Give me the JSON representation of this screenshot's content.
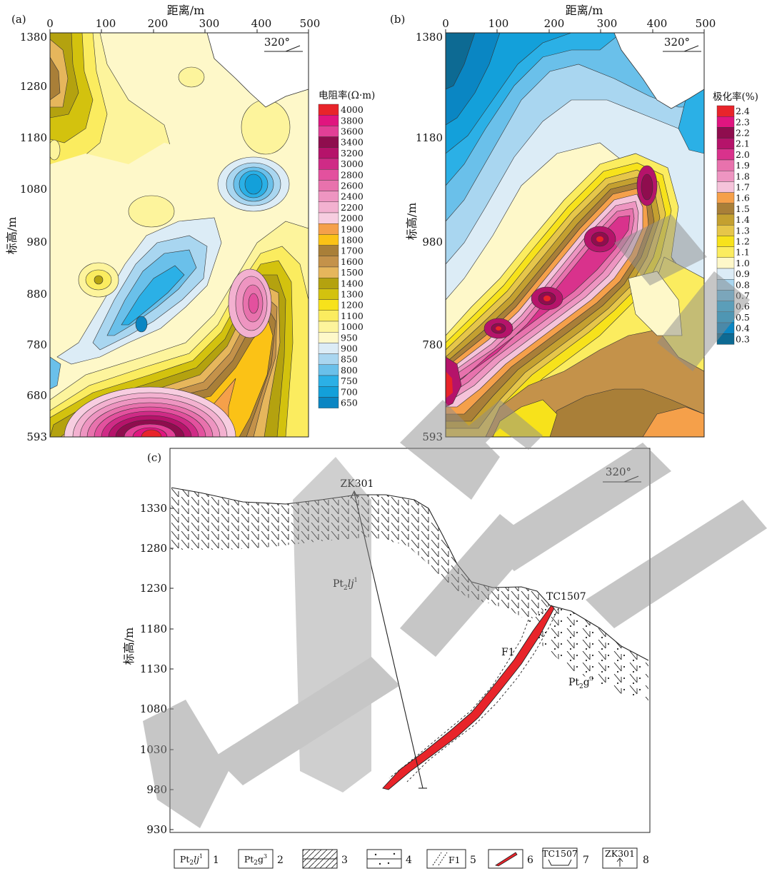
{
  "panels": {
    "a": {
      "label": "(a)",
      "top_axis_title": "距离/m",
      "x_ticks": [
        "0",
        "100",
        "200",
        "300",
        "400",
        "500"
      ],
      "y_axis_title": "标高/m",
      "y_ticks": [
        "1380",
        "1280",
        "1180",
        "1080",
        "980",
        "880",
        "780",
        "680",
        "593"
      ],
      "orientation": "320°",
      "legend_title": "电阻率(Ω·m)",
      "legend": [
        {
          "value": "4000",
          "color": "#e8242a"
        },
        {
          "value": "3800",
          "color": "#e0157f"
        },
        {
          "value": "3600",
          "color": "#e23f96"
        },
        {
          "value": "3400",
          "color": "#8f0d4e"
        },
        {
          "value": "3200",
          "color": "#b5136a"
        },
        {
          "value": "3000",
          "color": "#cf2b86"
        },
        {
          "value": "2800",
          "color": "#e3519e"
        },
        {
          "value": "2600",
          "color": "#e872ad"
        },
        {
          "value": "2400",
          "color": "#ee95c1"
        },
        {
          "value": "2200",
          "color": "#f3b1d0"
        },
        {
          "value": "2000",
          "color": "#f7cde0"
        },
        {
          "value": "1900",
          "color": "#f5a04a"
        },
        {
          "value": "1800",
          "color": "#fbc216"
        },
        {
          "value": "1700",
          "color": "#a97f38"
        },
        {
          "value": "1600",
          "color": "#c4924a"
        },
        {
          "value": "1500",
          "color": "#e6b65c"
        },
        {
          "value": "1400",
          "color": "#b4a20f"
        },
        {
          "value": "1300",
          "color": "#d3c20e"
        },
        {
          "value": "1200",
          "color": "#f7e21b"
        },
        {
          "value": "1100",
          "color": "#fbec5f"
        },
        {
          "value": "1000",
          "color": "#fdf49c"
        },
        {
          "value": "950",
          "color": "#fef8c9"
        },
        {
          "value": "900",
          "color": "#dcecf6"
        },
        {
          "value": "850",
          "color": "#a9d6f0"
        },
        {
          "value": "800",
          "color": "#6ac0ea"
        },
        {
          "value": "750",
          "color": "#2bb0e6"
        },
        {
          "value": "700",
          "color": "#13a0da"
        },
        {
          "value": "650",
          "color": "#0a86c3"
        }
      ]
    },
    "b": {
      "label": "(b)",
      "top_axis_title": "距离/m",
      "x_ticks": [
        "0",
        "100",
        "200",
        "300",
        "400",
        "500"
      ],
      "y_axis_title": "标高/m",
      "y_ticks": [
        "1380",
        "1180",
        "980",
        "780",
        "593"
      ],
      "orientation": "320°",
      "legend_title": "极化率(%)",
      "legend": [
        {
          "value": "2.4",
          "color": "#e8242a"
        },
        {
          "value": "2.3",
          "color": "#e0157f"
        },
        {
          "value": "2.2",
          "color": "#8f0d4e"
        },
        {
          "value": "2.1",
          "color": "#b5136a"
        },
        {
          "value": "2.0",
          "color": "#d9328c"
        },
        {
          "value": "1.9",
          "color": "#e872ad"
        },
        {
          "value": "1.8",
          "color": "#ee95c1"
        },
        {
          "value": "1.7",
          "color": "#f5c3da"
        },
        {
          "value": "1.6",
          "color": "#f5a04a"
        },
        {
          "value": "1.5",
          "color": "#a97f38"
        },
        {
          "value": "1.4",
          "color": "#c4a030"
        },
        {
          "value": "1.3",
          "color": "#e6c64a"
        },
        {
          "value": "1.2",
          "color": "#f7e21b"
        },
        {
          "value": "1.1",
          "color": "#fbec5f"
        },
        {
          "value": "1.0",
          "color": "#fef8c9"
        },
        {
          "value": "0.9",
          "color": "#dcecf6"
        },
        {
          "value": "0.8",
          "color": "#a9d6f0"
        },
        {
          "value": "0.7",
          "color": "#6ac0ea"
        },
        {
          "value": "0.6",
          "color": "#2bb0e6"
        },
        {
          "value": "0.5",
          "color": "#13a0da"
        },
        {
          "value": "0.4",
          "color": "#0a86c3"
        },
        {
          "value": "0.3",
          "color": "#0d6a93"
        }
      ]
    },
    "c": {
      "label": "(c)",
      "y_axis_title": "标高/m",
      "y_ticks": [
        "1330",
        "1280",
        "1230",
        "1180",
        "1130",
        "1080",
        "1030",
        "980",
        "930"
      ],
      "orientation": "320°",
      "borehole": "ZK301",
      "trench": "TC1507",
      "fault": "F1",
      "unit_upper": {
        "base": "Pt",
        "sub": "2",
        "mid": "lj",
        "sup": "1"
      },
      "unit_lower": {
        "base": "Pt",
        "sub": "2",
        "mid": "g",
        "sup": "3"
      }
    }
  },
  "key": [
    {
      "n": "1",
      "sample": "Pt2lj1"
    },
    {
      "n": "2",
      "sample": "Pt2g3"
    },
    {
      "n": "3",
      "sample": ""
    },
    {
      "n": "4",
      "sample": ""
    },
    {
      "n": "5",
      "sample": "F1"
    },
    {
      "n": "6",
      "sample": ""
    },
    {
      "n": "7",
      "sample": "TC1507"
    },
    {
      "n": "8",
      "sample": "ZK301"
    }
  ],
  "watermark": "勘"
}
